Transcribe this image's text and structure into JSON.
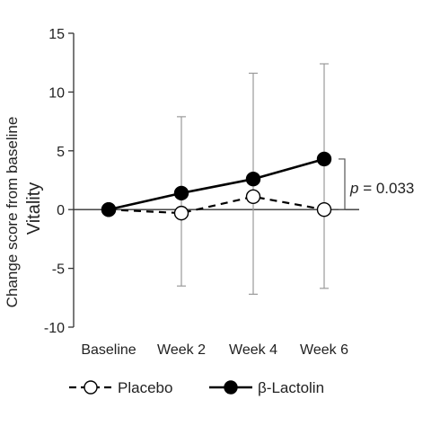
{
  "chart_data": {
    "type": "line",
    "categories": [
      "Baseline",
      "Week 2",
      "Week 4",
      "Week 6"
    ],
    "ylabel_line1": "Change score from baseline",
    "ylabel_line2": "Vitality",
    "ylim": [
      -10,
      15
    ],
    "yticks": [
      15,
      10,
      5,
      0,
      -5,
      -10
    ],
    "series": [
      {
        "name": "Placebo",
        "style": "dashed-open",
        "values": [
          0,
          -0.3,
          1.1,
          0
        ],
        "error_upper": [
          0,
          7.9,
          11.6,
          12.4
        ],
        "error_lower": [
          0,
          -6.5,
          -7.2,
          -6.7
        ]
      },
      {
        "name": "β-Lactolin",
        "style": "solid-filled",
        "values": [
          0,
          1.4,
          2.6,
          4.3
        ]
      }
    ],
    "annotation": {
      "p_label": "p",
      "p_rest": " = 0.033"
    },
    "colors": {
      "line": "#000000",
      "errorbar": "#9a9a9a",
      "axis": "#333333"
    }
  }
}
